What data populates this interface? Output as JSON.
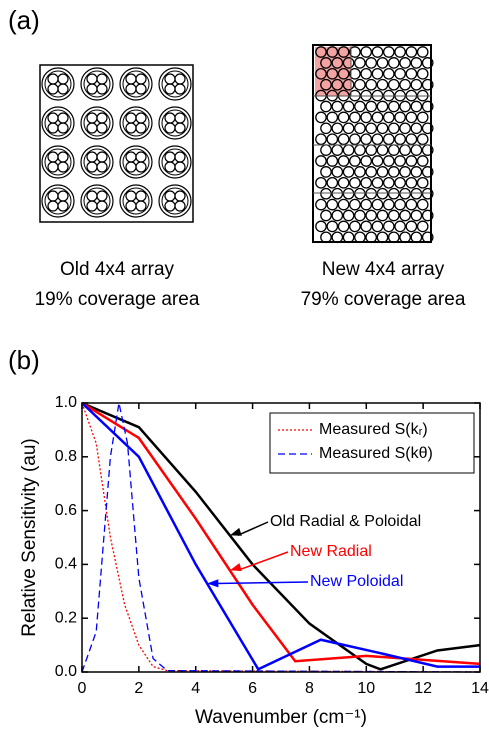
{
  "panel_a": {
    "label": "(a)",
    "old": {
      "title": "Old 4x4 array",
      "caption": "19% coverage area"
    },
    "new": {
      "title": "New 4x4 array",
      "caption": "79% coverage area"
    }
  },
  "panel_b": {
    "label": "(b)"
  },
  "chart_data": {
    "type": "line",
    "xlabel": "Wavenumber (cm⁻¹)",
    "ylabel": "Relative Sensitivity (au)",
    "xlim": [
      0,
      14
    ],
    "xticks": [
      0,
      2,
      4,
      6,
      8,
      10,
      12,
      14
    ],
    "ylim": [
      0,
      1.0
    ],
    "yticks": [
      {
        "value": 0,
        "label": "0.0"
      },
      {
        "value": 0.2,
        "label": "0.2"
      },
      {
        "value": 0.4,
        "label": "0.4"
      },
      {
        "value": 0.6,
        "label": "0.6"
      },
      {
        "value": 0.8,
        "label": "0.8"
      },
      {
        "value": 1.0,
        "label": "1.0"
      }
    ],
    "legend": "upper right",
    "series": [
      {
        "name": "Old Radial & Poloidal",
        "label_style": "arrow",
        "color": "#000000",
        "style": "solid",
        "x": [
          0,
          2,
          4,
          6,
          8,
          10,
          10.5,
          12.5,
          14
        ],
        "values": [
          1.0,
          0.91,
          0.67,
          0.4,
          0.18,
          0.03,
          0.01,
          0.08,
          0.1
        ]
      },
      {
        "name": "New Radial",
        "label_style": "arrow",
        "color": "#ff0000",
        "style": "solid",
        "x": [
          0,
          2,
          4,
          6,
          7.5,
          10,
          14
        ],
        "values": [
          1.0,
          0.87,
          0.57,
          0.25,
          0.04,
          0.06,
          0.03
        ]
      },
      {
        "name": "New Poloidal",
        "label_style": "arrow",
        "color": "#0000ff",
        "style": "solid",
        "x": [
          0,
          2,
          4,
          6.2,
          8.4,
          10.5,
          12.5,
          14
        ],
        "values": [
          1.0,
          0.8,
          0.4,
          0.01,
          0.12,
          0.07,
          0.02,
          0.02
        ]
      },
      {
        "name": "Measured S(kᵣ)",
        "label_style": "legend",
        "color": "#ff0000",
        "style": "dotted",
        "x": [
          0,
          0.5,
          1,
          1.5,
          2,
          2.5,
          3,
          14
        ],
        "values": [
          1.0,
          0.85,
          0.5,
          0.25,
          0.1,
          0.02,
          0.005,
          0
        ]
      },
      {
        "name": "Measured S(kθ)",
        "label_style": "legend",
        "color": "#0000ff",
        "style": "dashed",
        "x": [
          0,
          0.5,
          1,
          1.3,
          1.6,
          2,
          2.5,
          3,
          14
        ],
        "values": [
          0,
          0.15,
          0.8,
          1.0,
          0.85,
          0.35,
          0.05,
          0.005,
          0
        ]
      }
    ]
  }
}
